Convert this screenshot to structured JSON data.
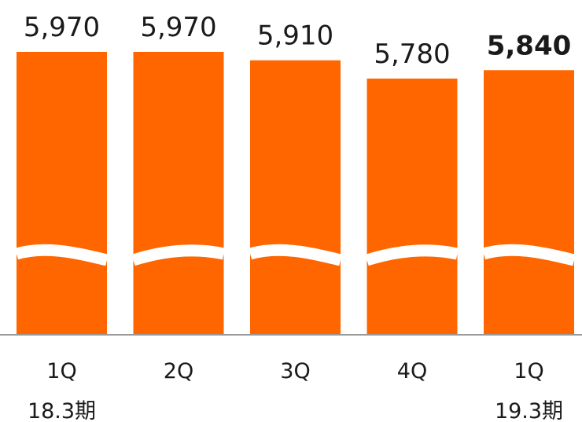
{
  "chart_data": {
    "type": "bar",
    "categories": [
      "1Q",
      "2Q",
      "3Q",
      "4Q",
      "1Q"
    ],
    "values": [
      5970,
      5970,
      5910,
      5780,
      5840
    ],
    "value_labels": [
      "5,970",
      "5,970",
      "5,910",
      "5,780",
      "5,840"
    ],
    "highlight_index": 4,
    "period_labels": [
      {
        "category_index": 0,
        "text": "18.3期"
      },
      {
        "category_index": 4,
        "text": "19.3期"
      }
    ],
    "bar_color": "#ff6600",
    "axis_color": "#999999",
    "broken_axis": true,
    "title": "",
    "xlabel": "",
    "ylabel": ""
  }
}
